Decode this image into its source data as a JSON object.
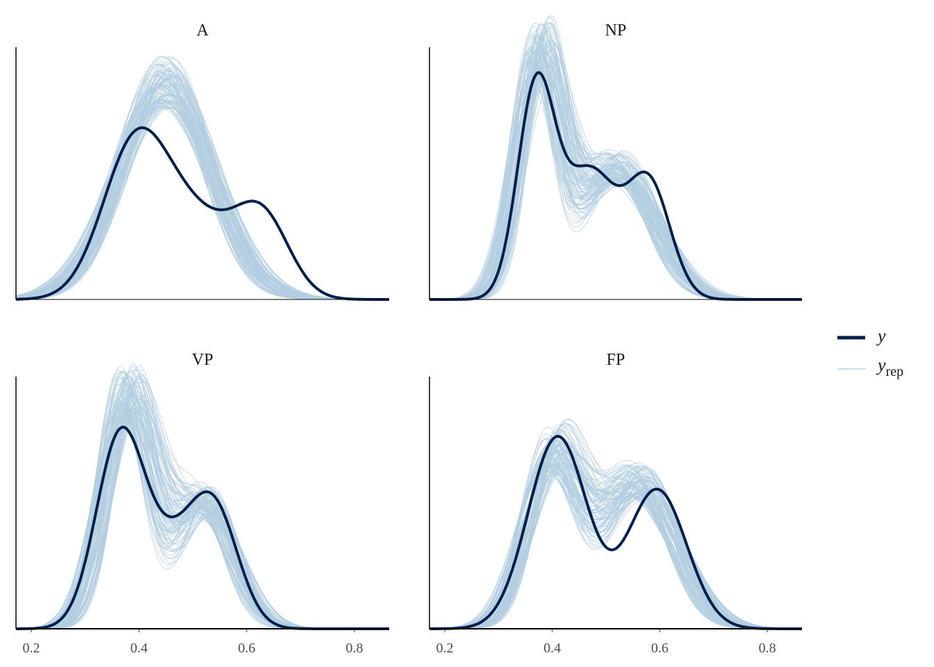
{
  "chart_data": {
    "type": "line",
    "subtype": "density-overlay",
    "xlim": [
      0.1716,
      0.8645
    ],
    "x_ticks": [
      0.2,
      0.4,
      0.6,
      0.8
    ],
    "x_tick_labels": [
      "0.2",
      "0.4",
      "0.6",
      "0.8"
    ],
    "grid": false,
    "legend": {
      "placement": "right",
      "entries": [
        {
          "name": "y",
          "label": "y",
          "sub": ""
        },
        {
          "name": "yrep",
          "label": "y",
          "sub": "rep"
        }
      ]
    },
    "colors": {
      "y": "#011f4b",
      "yrep": "#b3cde0",
      "axis": "#000000"
    },
    "n_rep": 100,
    "rep_jitter": {
      "mean": 0.02,
      "sd_frac": 0.12
    },
    "facets": [
      {
        "title": "A",
        "ylim": [
          0,
          5.8
        ],
        "y_mixture": [
          [
            0.39,
            0.06,
            0.45
          ],
          [
            0.5,
            0.08,
            0.35
          ],
          [
            0.63,
            0.05,
            0.2
          ]
        ],
        "yrep_mixture": [
          [
            0.45,
            0.085,
            1.0
          ]
        ]
      },
      {
        "title": "NP",
        "ylim": [
          0,
          5.8
        ],
        "y_mixture": [
          [
            0.37,
            0.035,
            0.4
          ],
          [
            0.47,
            0.05,
            0.35
          ],
          [
            0.58,
            0.04,
            0.25
          ]
        ],
        "yrep_mixture": [
          [
            0.375,
            0.04,
            0.5
          ],
          [
            0.52,
            0.07,
            0.5
          ]
        ]
      },
      {
        "title": "VP",
        "ylim": [
          0,
          6.2
        ],
        "y_mixture": [
          [
            0.365,
            0.045,
            0.5
          ],
          [
            0.46,
            0.05,
            0.2
          ],
          [
            0.54,
            0.045,
            0.3
          ]
        ],
        "yrep_mixture": [
          [
            0.38,
            0.045,
            0.6
          ],
          [
            0.52,
            0.055,
            0.4
          ]
        ]
      },
      {
        "title": "FP",
        "ylim": [
          0,
          5.8
        ],
        "y_mixture": [
          [
            0.41,
            0.055,
            0.58
          ],
          [
            0.595,
            0.055,
            0.42
          ]
        ],
        "yrep_mixture": [
          [
            0.4,
            0.05,
            0.45
          ],
          [
            0.56,
            0.07,
            0.55
          ]
        ]
      }
    ]
  }
}
